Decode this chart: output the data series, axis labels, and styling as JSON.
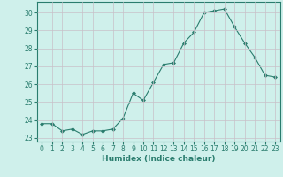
{
  "x": [
    0,
    1,
    2,
    3,
    4,
    5,
    6,
    7,
    8,
    9,
    10,
    11,
    12,
    13,
    14,
    15,
    16,
    17,
    18,
    19,
    20,
    21,
    22,
    23
  ],
  "y": [
    23.8,
    23.8,
    23.4,
    23.5,
    23.2,
    23.4,
    23.4,
    23.5,
    24.1,
    25.5,
    25.1,
    26.1,
    27.1,
    27.2,
    28.3,
    28.9,
    30.0,
    30.1,
    30.2,
    29.2,
    28.3,
    27.5,
    26.5,
    26.4
  ],
  "xlabel": "Humidex (Indice chaleur)",
  "xlim": [
    -0.5,
    23.5
  ],
  "ylim": [
    22.8,
    30.6
  ],
  "yticks": [
    23,
    24,
    25,
    26,
    27,
    28,
    29,
    30
  ],
  "xticks": [
    0,
    1,
    2,
    3,
    4,
    5,
    6,
    7,
    8,
    9,
    10,
    11,
    12,
    13,
    14,
    15,
    16,
    17,
    18,
    19,
    20,
    21,
    22,
    23
  ],
  "line_color": "#2a7d6e",
  "marker_color": "#2a7d6e",
  "bg_color": "#cff0eb",
  "grid_color": "#c8c0c8",
  "spine_color": "#2a7d6e",
  "tick_color": "#2a7d6e",
  "label_fontsize": 6.5,
  "tick_fontsize": 5.5
}
